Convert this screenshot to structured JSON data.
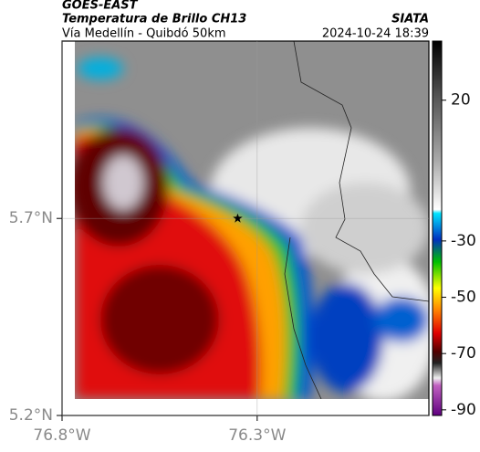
{
  "header": {
    "title": "GOES-EAST",
    "subtitle": "Temperatura de Brillo CH13",
    "route": "Vía Medellín - Quibdó 50km",
    "source": "SIATA",
    "timestamp": "2024-10-24 18:39"
  },
  "map": {
    "xlim": [
      -76.8,
      -75.86
    ],
    "ylim": [
      5.2,
      6.15
    ],
    "xticks": [
      {
        "value": -76.8,
        "label": "76.8°W"
      },
      {
        "value": -76.3,
        "label": "76.3°W"
      }
    ],
    "yticks": [
      {
        "value": 5.2,
        "label": "5.2°N"
      },
      {
        "value": 5.7,
        "label": "5.7°N"
      }
    ],
    "marker": {
      "lon": -76.35,
      "lat": 5.7
    }
  },
  "colorbar": {
    "lim": [
      -92,
      41
    ],
    "ticks": [
      20,
      -30,
      -50,
      -70,
      -90
    ]
  }
}
